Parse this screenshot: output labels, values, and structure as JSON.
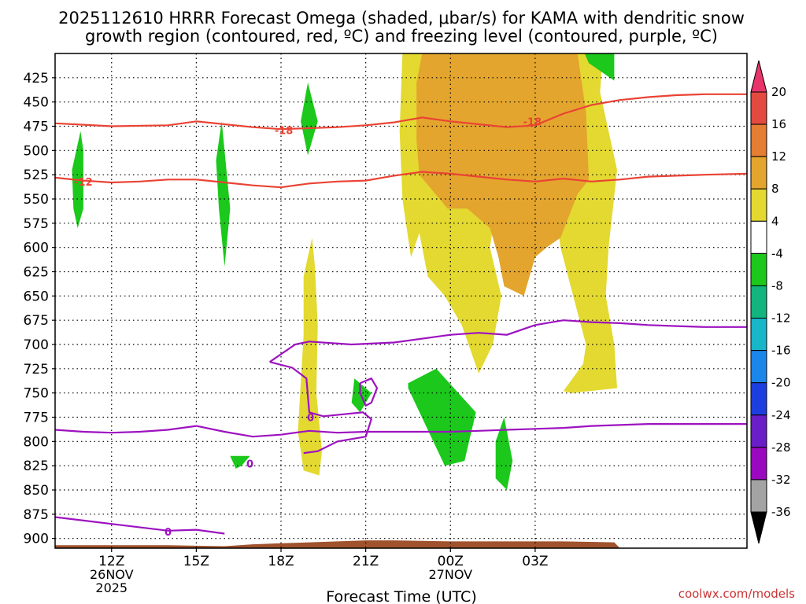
{
  "chart_data": {
    "type": "heatmap",
    "title_lines": [
      "2025112610 HRRR Forecast Omega (shaded, μbar/s) for KAMA with dendritic snow",
      "growth region (contoured, red, ºC) and freezing level (contoured, purple, ºC)"
    ],
    "xlabel": "Forecast Time (UTC)",
    "credit": "coolwx.com/models",
    "ylim": [
      910,
      400
    ],
    "xlim": [
      10,
      34.5
    ],
    "y_ticks": [
      425,
      450,
      475,
      500,
      525,
      550,
      575,
      600,
      625,
      650,
      675,
      700,
      725,
      750,
      775,
      800,
      825,
      850,
      875,
      900
    ],
    "x_ticks": [
      {
        "x": 12,
        "lines": [
          "12Z",
          "26NOV",
          "2025"
        ]
      },
      {
        "x": 15,
        "lines": [
          "15Z"
        ]
      },
      {
        "x": 18,
        "lines": [
          "18Z"
        ]
      },
      {
        "x": 21,
        "lines": [
          "21Z"
        ]
      },
      {
        "x": 24,
        "lines": [
          "00Z",
          "27NOV"
        ]
      },
      {
        "x": 27,
        "lines": [
          "03Z"
        ]
      }
    ],
    "grid": true,
    "colorbar": {
      "labels": [
        20,
        16,
        12,
        8,
        4,
        -4,
        -8,
        -12,
        -16,
        -20,
        -24,
        -28,
        -32,
        -36
      ],
      "colors": [
        "#e8346b",
        "#e34a40",
        "#e57d33",
        "#e3a52e",
        "#e3d930",
        "#ffffff",
        "#1bc81b",
        "#12b57e",
        "#18b6c9",
        "#1a86ea",
        "#1d3fe0",
        "#6a1ec8",
        "#9a08c0",
        "#a3a3a3",
        "#000000"
      ]
    },
    "omega_regions": [
      {
        "level": "4",
        "color": "#e3d930",
        "points": [
          [
            22.3,
            400
          ],
          [
            29.4,
            400
          ],
          [
            29.3,
            440
          ],
          [
            29.9,
            520
          ],
          [
            29.6,
            600
          ],
          [
            29.5,
            650
          ],
          [
            29.8,
            700
          ],
          [
            29.9,
            745
          ],
          [
            28.3,
            750
          ],
          [
            28.0,
            748
          ],
          [
            28.7,
            720
          ],
          [
            28.8,
            700
          ],
          [
            28.3,
            645
          ],
          [
            27.9,
            600
          ],
          [
            27.7,
            560
          ],
          [
            25.6,
            560
          ],
          [
            25.4,
            600
          ],
          [
            25.8,
            650
          ],
          [
            25.5,
            700
          ],
          [
            25.0,
            730
          ],
          [
            24.4,
            680
          ],
          [
            23.8,
            650
          ],
          [
            23.2,
            630
          ],
          [
            22.9,
            585
          ],
          [
            22.6,
            610
          ],
          [
            22.3,
            550
          ],
          [
            22.2,
            480
          ],
          [
            22.3,
            400
          ]
        ]
      },
      {
        "level": "4",
        "color": "#e3d930",
        "points": [
          [
            19.1,
            590
          ],
          [
            19.2,
            620
          ],
          [
            19.3,
            680
          ],
          [
            19.25,
            750
          ],
          [
            19.45,
            810
          ],
          [
            19.35,
            835
          ],
          [
            18.8,
            830
          ],
          [
            18.6,
            790
          ],
          [
            18.7,
            740
          ],
          [
            18.8,
            690
          ],
          [
            18.8,
            630
          ],
          [
            19.1,
            590
          ]
        ]
      },
      {
        "level": "8",
        "color": "#e3a52e",
        "points": [
          [
            23.0,
            400
          ],
          [
            28.5,
            400
          ],
          [
            28.8,
            460
          ],
          [
            28.9,
            530
          ],
          [
            28.5,
            545
          ],
          [
            27.9,
            590
          ],
          [
            27.4,
            600
          ],
          [
            27.0,
            610
          ],
          [
            26.6,
            650
          ],
          [
            25.9,
            640
          ],
          [
            25.7,
            610
          ],
          [
            25.4,
            580
          ],
          [
            24.6,
            560
          ],
          [
            23.9,
            560
          ],
          [
            22.9,
            525
          ],
          [
            22.8,
            490
          ],
          [
            22.8,
            430
          ],
          [
            23.0,
            400
          ]
        ]
      },
      {
        "level": "-4",
        "color": "#1bc81b",
        "points": [
          [
            10.9,
            480
          ],
          [
            11.0,
            500
          ],
          [
            11.0,
            560
          ],
          [
            10.8,
            580
          ],
          [
            10.65,
            560
          ],
          [
            10.6,
            520
          ],
          [
            10.9,
            480
          ]
        ]
      },
      {
        "level": "-4",
        "color": "#1bc81b",
        "points": [
          [
            15.9,
            470
          ],
          [
            16.2,
            560
          ],
          [
            16.0,
            620
          ],
          [
            15.8,
            560
          ],
          [
            15.7,
            510
          ],
          [
            15.9,
            470
          ]
        ]
      },
      {
        "level": "-4",
        "color": "#1bc81b",
        "points": [
          [
            18.95,
            430
          ],
          [
            19.3,
            470
          ],
          [
            18.95,
            505
          ],
          [
            18.7,
            470
          ],
          [
            18.95,
            430
          ]
        ]
      },
      {
        "level": "-4",
        "color": "#1bc81b",
        "points": [
          [
            28.75,
            400
          ],
          [
            29.8,
            400
          ],
          [
            29.8,
            428
          ],
          [
            28.9,
            410
          ],
          [
            28.75,
            400
          ]
        ]
      },
      {
        "level": "-4",
        "color": "#1bc81b",
        "points": [
          [
            20.6,
            735
          ],
          [
            21.2,
            750
          ],
          [
            20.8,
            770
          ],
          [
            20.5,
            760
          ],
          [
            20.6,
            735
          ]
        ]
      },
      {
        "level": "-4",
        "color": "#1bc81b",
        "points": [
          [
            22.5,
            740
          ],
          [
            23.5,
            725
          ],
          [
            24.9,
            770
          ],
          [
            24.5,
            820
          ],
          [
            23.8,
            825
          ],
          [
            22.5,
            745
          ]
        ]
      },
      {
        "level": "-4",
        "color": "#1bc81b",
        "points": [
          [
            25.9,
            775
          ],
          [
            26.2,
            820
          ],
          [
            26.0,
            850
          ],
          [
            25.6,
            838
          ],
          [
            25.6,
            800
          ],
          [
            25.9,
            775
          ]
        ]
      },
      {
        "level": "-4",
        "color": "#1bc81b",
        "points": [
          [
            16.2,
            815
          ],
          [
            16.9,
            815
          ],
          [
            16.6,
            825
          ],
          [
            16.4,
            828
          ],
          [
            16.2,
            815
          ]
        ]
      }
    ],
    "temperature_contours": [
      {
        "label": "-18",
        "color": "#ea4334",
        "points": [
          [
            10,
            472
          ],
          [
            12,
            475
          ],
          [
            14,
            474
          ],
          [
            15,
            470
          ],
          [
            16,
            473
          ],
          [
            17,
            476
          ],
          [
            18,
            478
          ],
          [
            19,
            477
          ],
          [
            20,
            476
          ],
          [
            21,
            474
          ],
          [
            22,
            471
          ],
          [
            23,
            466
          ],
          [
            24,
            470
          ],
          [
            25,
            473
          ],
          [
            26,
            476
          ],
          [
            27,
            474
          ],
          [
            28,
            462
          ],
          [
            29,
            453
          ],
          [
            30,
            448
          ],
          [
            31,
            445
          ],
          [
            32,
            443
          ],
          [
            33,
            442
          ],
          [
            34.5,
            442
          ]
        ],
        "label_at": [
          18.1,
          479
        ]
      },
      {
        "label": "-12",
        "color": "#ea4334",
        "points": [
          [
            10,
            528
          ],
          [
            11,
            531
          ],
          [
            12,
            533
          ],
          [
            13,
            532
          ],
          [
            14,
            530
          ],
          [
            15,
            530
          ],
          [
            16,
            533
          ],
          [
            17,
            536
          ],
          [
            18,
            538
          ],
          [
            19,
            534
          ],
          [
            20,
            532
          ],
          [
            21,
            531
          ],
          [
            22,
            526
          ],
          [
            23,
            522
          ],
          [
            24,
            524
          ],
          [
            25,
            527
          ],
          [
            26,
            530
          ],
          [
            27,
            532
          ],
          [
            28,
            529
          ],
          [
            29,
            532
          ],
          [
            30,
            530
          ],
          [
            31,
            527
          ],
          [
            32,
            526
          ],
          [
            33,
            525
          ],
          [
            34.5,
            524
          ]
        ],
        "label_at": [
          11.0,
          532
        ]
      }
    ],
    "freezing_contours": [
      {
        "label": "0",
        "color": "#9d12c0",
        "points": [
          [
            10,
            788
          ],
          [
            11,
            790
          ],
          [
            12,
            791
          ],
          [
            13,
            790
          ],
          [
            14,
            788
          ],
          [
            15,
            784
          ],
          [
            16,
            790
          ],
          [
            17,
            795
          ],
          [
            18,
            793
          ],
          [
            19,
            789
          ],
          [
            20,
            791
          ],
          [
            21,
            790
          ],
          [
            22,
            790
          ],
          [
            23,
            790
          ],
          [
            24,
            790
          ],
          [
            25,
            789
          ],
          [
            26,
            788
          ],
          [
            27,
            787
          ],
          [
            28,
            786
          ],
          [
            29,
            784
          ],
          [
            30,
            783
          ],
          [
            31,
            782
          ],
          [
            32,
            782
          ],
          [
            33,
            782
          ],
          [
            34.5,
            782
          ]
        ],
        "label_at": [
          16.9,
          823
        ]
      },
      {
        "label": "0",
        "color": "#9d12c0",
        "points": [
          [
            10,
            878
          ],
          [
            12,
            885
          ],
          [
            14,
            892
          ],
          [
            15,
            891
          ],
          [
            16,
            895
          ]
        ],
        "label_at": [
          14.0,
          893
        ]
      },
      {
        "label": "0",
        "color": "#9d12c0",
        "points": [
          [
            17.6,
            718
          ],
          [
            18.5,
            700
          ],
          [
            19.0,
            697
          ],
          [
            20.5,
            700
          ],
          [
            22.0,
            698
          ],
          [
            24.0,
            690
          ],
          [
            25.0,
            688
          ],
          [
            26.0,
            690
          ],
          [
            27.0,
            680
          ],
          [
            28.0,
            675
          ],
          [
            29.0,
            677
          ],
          [
            30.0,
            678
          ],
          [
            31.0,
            680
          ],
          [
            32.0,
            681
          ],
          [
            33.0,
            682
          ],
          [
            34.5,
            682
          ],
          [
            34.5,
            682
          ]
        ],
        "label_at": null
      }
    ],
    "ground": {
      "color": "#a0522d",
      "points": [
        [
          10,
          907
        ],
        [
          12,
          907
        ],
        [
          14,
          907
        ],
        [
          16,
          908
        ],
        [
          17,
          906
        ],
        [
          18,
          905
        ],
        [
          19,
          904
        ],
        [
          20,
          903
        ],
        [
          21,
          902
        ],
        [
          22,
          902
        ],
        [
          24,
          903
        ],
        [
          26,
          903
        ],
        [
          28,
          903
        ],
        [
          29.8,
          904
        ],
        [
          30,
          910
        ],
        [
          10,
          910
        ]
      ]
    }
  }
}
